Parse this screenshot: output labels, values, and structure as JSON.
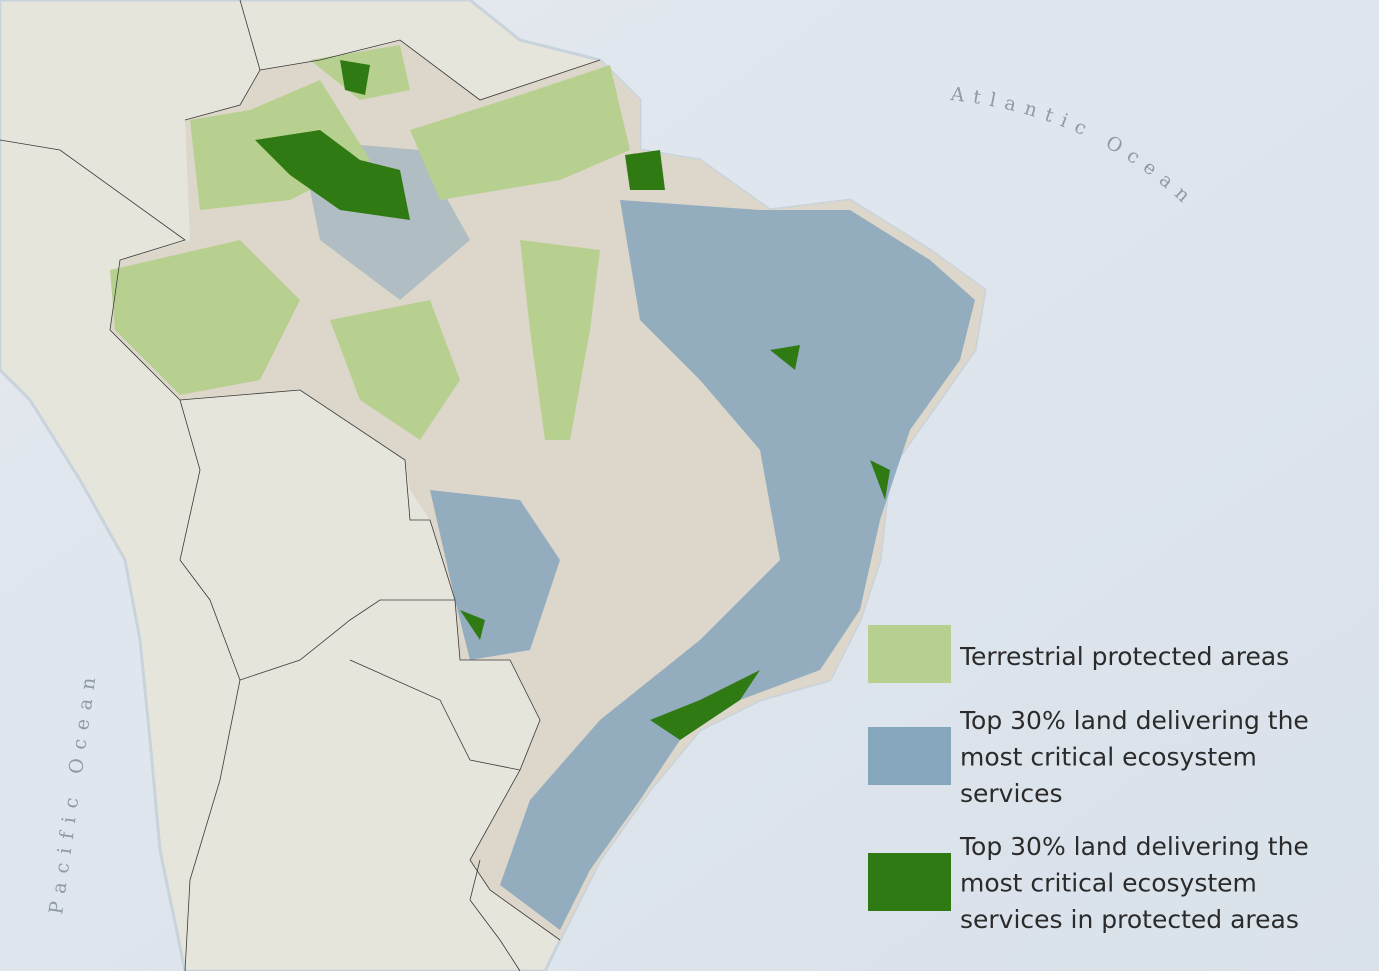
{
  "map": {
    "ocean_labels": {
      "atlantic": "Atlantic Ocean",
      "pacific": "Pacific Ocean"
    },
    "legend": [
      {
        "color": "#b7d08f",
        "lines": [
          "Terrestrial protected areas"
        ]
      },
      {
        "color": "#86a6bd",
        "lines": [
          "Top 30% land delivering the",
          "most critical ecosystem",
          "services"
        ]
      },
      {
        "color": "#2f7a12",
        "lines": [
          "Top 30% land delivering the",
          "most critical ecosystem",
          "services in protected areas"
        ]
      }
    ]
  }
}
